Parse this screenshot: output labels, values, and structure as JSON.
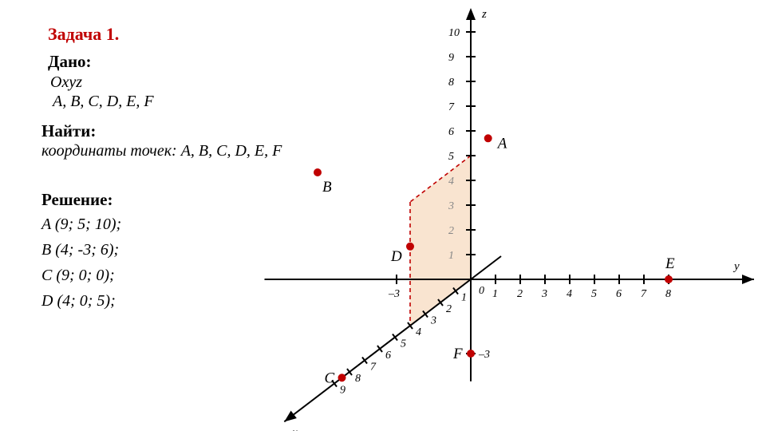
{
  "title": "Задача 1.",
  "given_header": "Дано:",
  "given_line1": "Oxyz",
  "given_line2": "A, B, C, D, E, F",
  "find_header": "Найти:",
  "find_line": "координаты точек:  A, B, C, D, E, F",
  "solution_header": "Решение:",
  "solution": {
    "A": "A (9; 5; 10);",
    "B": "B (4; -3; 6);",
    "C": "C (9; 0; 0);",
    "D": "D (4; 0; 5);"
  },
  "chart": {
    "type": "3d-coordinate-diagram",
    "background_color": "#ffffff",
    "axis_color": "#000000",
    "tick_color": "#000000",
    "point_color": "#c00000",
    "dash_color": "#c00000",
    "fill_color": "#f7d9bc",
    "origin_label": "0",
    "x_axis": {
      "label": "x",
      "ticks": [
        1,
        2,
        3,
        4,
        5,
        6,
        7,
        8,
        9
      ]
    },
    "y_axis": {
      "label": "y",
      "ticks": [
        1,
        2,
        3,
        4,
        5,
        6,
        7,
        8
      ],
      "neg_tick": -3
    },
    "z_axis": {
      "label": "z",
      "ticks": [
        1,
        2,
        3,
        4,
        5,
        6,
        7,
        8,
        9,
        10
      ],
      "neg_tick": -3
    },
    "points": {
      "A": {
        "label": "A"
      },
      "B": {
        "label": "B"
      },
      "C": {
        "label": "C"
      },
      "D": {
        "label": "D"
      },
      "E": {
        "label": "E"
      },
      "F": {
        "label": "F"
      }
    },
    "label_fontsize": 19,
    "num_fontsize": 14,
    "axis_label_fontsize": 15
  }
}
